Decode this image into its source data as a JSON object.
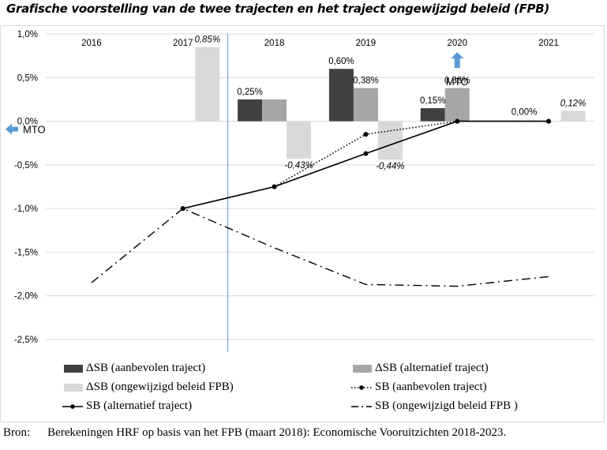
{
  "title": "Grafische voorstelling van de twee trajecten en het traject ongewijzigd beleid (FPB)",
  "source": {
    "label": "Bron:",
    "text": "Berekeningen HRF op basis van het FPB (maart 2018): Economische Vooruitzichten 2018-2023."
  },
  "colors": {
    "aanbevolen": "#404040",
    "alternatief": "#a6a6a6",
    "ongewijzigd": "#d9d9d9",
    "line": "#000000",
    "mto_arrow": "#5b9bd5",
    "vline": "#5b9bd5"
  },
  "chart_data": {
    "type": "bar+line",
    "categories": [
      "2016",
      "2017",
      "2018",
      "2019",
      "2020",
      "2021"
    ],
    "ylim": [
      -2.5,
      1.0
    ],
    "yticks": [
      1.0,
      0.5,
      0.0,
      -0.5,
      -1.0,
      -1.5,
      -2.0,
      -2.5
    ],
    "ytick_labels": [
      "1,0%",
      "0,5%",
      "0,0%",
      "-0,5%",
      "-1,0%",
      "-1,5%",
      "-2,0%",
      "-2,5%"
    ],
    "grid": true,
    "vertical_marker_between": [
      "2017",
      "2018"
    ],
    "bar_series": [
      {
        "name": "ΔSB (aanbevolen traject)",
        "key": "aanbevolen",
        "values": [
          null,
          null,
          0.25,
          0.6,
          0.15,
          0.0
        ],
        "labels": [
          null,
          null,
          "0,25%",
          "0,60%",
          "0,15%",
          "0,00%"
        ]
      },
      {
        "name": "ΔSB (alternatief traject)",
        "key": "alternatief",
        "values": [
          null,
          null,
          0.25,
          0.38,
          0.38,
          null
        ],
        "labels": [
          null,
          null,
          null,
          "0,38%",
          "0,38%",
          null
        ]
      },
      {
        "name": "ΔSB (ongewijzigd beleid FPB)",
        "key": "ongewijzigd",
        "values": [
          null,
          0.85,
          -0.43,
          -0.44,
          null,
          0.12
        ],
        "labels": [
          null,
          "0,85%",
          "-0,43%",
          "-0,44%",
          null,
          "0,12%"
        ]
      }
    ],
    "line_series": [
      {
        "name": "SB (aanbevolen traject)",
        "style": "dotted-markers",
        "values": [
          null,
          -1.0,
          -0.75,
          -0.15,
          0.0,
          0.0
        ]
      },
      {
        "name": "SB (alternatief traject)",
        "style": "solid-markers",
        "values": [
          null,
          -1.0,
          -0.75,
          -0.37,
          0.0,
          0.0
        ]
      },
      {
        "name": "SB (ongewijzigd beleid FPB )",
        "style": "dashdot",
        "values": [
          -1.85,
          -1.0,
          -1.45,
          -1.87,
          -1.89,
          -1.78
        ]
      }
    ],
    "annotations": [
      {
        "text": "MTO",
        "direction": "left",
        "y": 0.0
      },
      {
        "text": "MTO",
        "direction": "up",
        "x": "2020"
      }
    ]
  }
}
